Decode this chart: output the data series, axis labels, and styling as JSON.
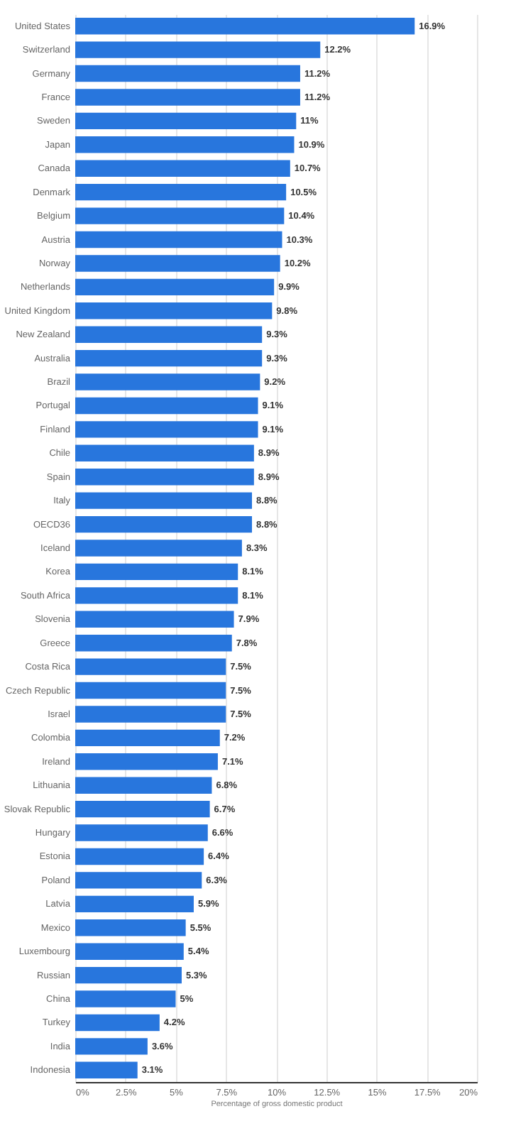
{
  "chart_data": {
    "type": "bar",
    "orientation": "horizontal",
    "xlabel": "Percentage of gross domestic product",
    "categories": [
      "United States",
      "Switzerland",
      "Germany",
      "France",
      "Sweden",
      "Japan",
      "Canada",
      "Denmark",
      "Belgium",
      "Austria",
      "Norway",
      "Netherlands",
      "United Kingdom",
      "New Zealand",
      "Australia",
      "Brazil",
      "Portugal",
      "Finland",
      "Chile",
      "Spain",
      "Italy",
      "OECD36",
      "Iceland",
      "Korea",
      "South Africa",
      "Slovenia",
      "Greece",
      "Costa Rica",
      "Czech Republic",
      "Israel",
      "Colombia",
      "Ireland",
      "Lithuania",
      "Slovak Republic",
      "Hungary",
      "Estonia",
      "Poland",
      "Latvia",
      "Mexico",
      "Luxembourg",
      "Russian",
      "China",
      "Turkey",
      "India",
      "Indonesia"
    ],
    "values": [
      16.9,
      12.2,
      11.2,
      11.2,
      11,
      10.9,
      10.7,
      10.5,
      10.4,
      10.3,
      10.2,
      9.9,
      9.8,
      9.3,
      9.3,
      9.2,
      9.1,
      9.1,
      8.9,
      8.9,
      8.8,
      8.8,
      8.3,
      8.1,
      8.1,
      7.9,
      7.8,
      7.5,
      7.5,
      7.5,
      7.2,
      7.1,
      6.8,
      6.7,
      6.6,
      6.4,
      6.3,
      5.9,
      5.5,
      5.4,
      5.3,
      5,
      4.2,
      3.6,
      3.1
    ],
    "value_labels": [
      "16.9%",
      "12.2%",
      "11.2%",
      "11.2%",
      "11%",
      "10.9%",
      "10.7%",
      "10.5%",
      "10.4%",
      "10.3%",
      "10.2%",
      "9.9%",
      "9.8%",
      "9.3%",
      "9.3%",
      "9.2%",
      "9.1%",
      "9.1%",
      "8.9%",
      "8.9%",
      "8.8%",
      "8.8%",
      "8.3%",
      "8.1%",
      "8.1%",
      "7.9%",
      "7.8%",
      "7.5%",
      "7.5%",
      "7.5%",
      "7.2%",
      "7.1%",
      "6.8%",
      "6.7%",
      "6.6%",
      "6.4%",
      "6.3%",
      "5.9%",
      "5.5%",
      "5.4%",
      "5.3%",
      "5%",
      "4.2%",
      "3.6%",
      "3.1%"
    ],
    "color": "#2876dd",
    "xlim": [
      0,
      20
    ],
    "xticks": [
      {
        "value": 0,
        "label": "0%"
      },
      {
        "value": 2.5,
        "label": "2.5%"
      },
      {
        "value": 5,
        "label": "5%"
      },
      {
        "value": 7.5,
        "label": "7.5%"
      },
      {
        "value": 10,
        "label": "10%"
      },
      {
        "value": 12.5,
        "label": "12.5%"
      },
      {
        "value": 15,
        "label": "15%"
      },
      {
        "value": 17.5,
        "label": "17.5%"
      },
      {
        "value": 20,
        "label": "20%"
      }
    ],
    "grid": "x"
  }
}
